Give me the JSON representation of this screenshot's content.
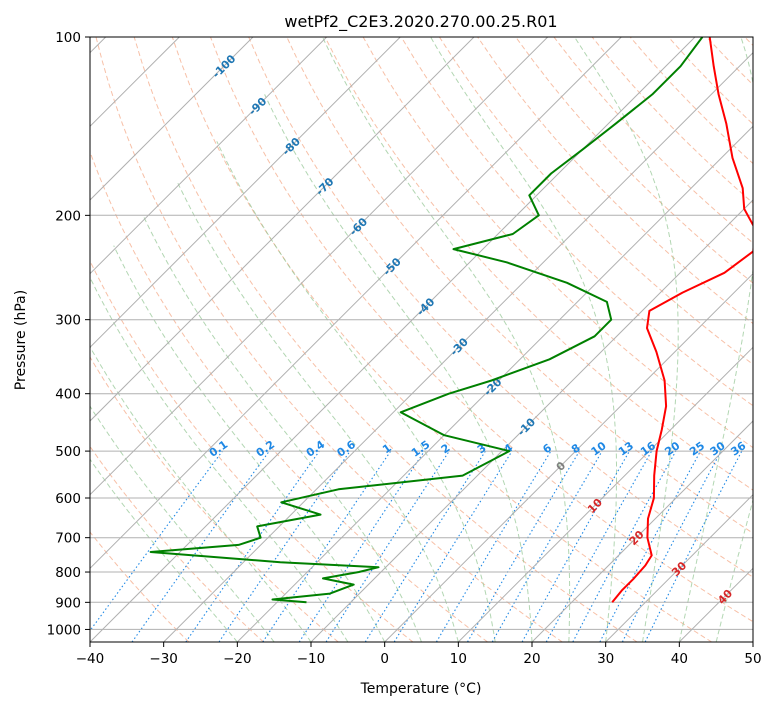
{
  "chart_data": {
    "type": "line",
    "title": "wetPf2_C2E3.2020.270.00.25.R01",
    "xlabel": "Temperature (°C)",
    "ylabel": "Pressure (hPa)",
    "xlim": [
      -40,
      50
    ],
    "ylim": [
      1050,
      100
    ],
    "y_scale": "log",
    "x_ticks": [
      -40,
      -30,
      -20,
      -10,
      0,
      10,
      20,
      30,
      40,
      50
    ],
    "y_ticks": [
      100,
      200,
      300,
      400,
      500,
      600,
      700,
      800,
      900,
      1000
    ],
    "grid": true,
    "colors": {
      "temperature": "#ff0000",
      "dewpoint": "#008000",
      "isotherm": "#b0b0b0",
      "dry_adiabat": "#f4a582",
      "moist_adiabat": "#92c592",
      "mixing_ratio": "#1e88e5",
      "iso_label": "#1f77b4",
      "red_label": "#d62728",
      "gray_label": "#808080"
    },
    "series": [
      {
        "name": "",
        "color": "#ff0000",
        "points": [
          [
            900,
            25.5
          ],
          [
            860,
            25.2
          ],
          [
            820,
            25.2
          ],
          [
            780,
            25.0
          ],
          [
            750,
            24.5
          ],
          [
            700,
            21.5
          ],
          [
            650,
            19.0
          ],
          [
            600,
            17.0
          ],
          [
            550,
            14.0
          ],
          [
            500,
            11.0
          ],
          [
            460,
            8.8
          ],
          [
            420,
            6.2
          ],
          [
            380,
            2.5
          ],
          [
            340,
            -2.5
          ],
          [
            310,
            -7.0
          ],
          [
            290,
            -9.0
          ],
          [
            270,
            -7.0
          ],
          [
            250,
            -4.0
          ],
          [
            230,
            -3.0
          ],
          [
            210,
            -6.0
          ],
          [
            195,
            -10.0
          ],
          [
            180,
            -13.0
          ],
          [
            160,
            -18.5
          ],
          [
            140,
            -24.0
          ],
          [
            125,
            -29.0
          ],
          [
            112,
            -33.5
          ],
          [
            100,
            -38.0
          ]
        ]
      },
      {
        "name": "",
        "color": "#008000",
        "points": [
          [
            900,
            -16.0
          ],
          [
            890,
            -21.0
          ],
          [
            870,
            -14.0
          ],
          [
            840,
            -12.0
          ],
          [
            820,
            -17.0
          ],
          [
            800,
            -13.0
          ],
          [
            785,
            -11.0
          ],
          [
            770,
            -25.0
          ],
          [
            740,
            -44.0
          ],
          [
            720,
            -33.0
          ],
          [
            700,
            -31.0
          ],
          [
            670,
            -33.0
          ],
          [
            640,
            -26.0
          ],
          [
            610,
            -33.0
          ],
          [
            580,
            -27.0
          ],
          [
            550,
            -12.0
          ],
          [
            500,
            -9.0
          ],
          [
            470,
            -20.0
          ],
          [
            430,
            -29.0
          ],
          [
            400,
            -25.0
          ],
          [
            380,
            -21.0
          ],
          [
            350,
            -16.0
          ],
          [
            320,
            -13.0
          ],
          [
            300,
            -13.0
          ],
          [
            280,
            -16.0
          ],
          [
            260,
            -24.0
          ],
          [
            240,
            -35.0
          ],
          [
            228,
            -44.0
          ],
          [
            215,
            -38.0
          ],
          [
            200,
            -37.0
          ],
          [
            185,
            -41.0
          ],
          [
            170,
            -41.0
          ],
          [
            155,
            -40.0
          ],
          [
            140,
            -39.0
          ],
          [
            125,
            -38.0
          ],
          [
            112,
            -38.0
          ],
          [
            100,
            -39.0
          ]
        ]
      }
    ],
    "isotherm_labels": [
      "-100",
      "-90",
      "-80",
      "-70",
      "-60",
      "-50",
      "-40",
      "-30",
      "-20",
      "-10",
      "0",
      "10",
      "20",
      "30",
      "40"
    ],
    "mixing_ratio_labels": [
      "0.1",
      "0.2",
      "0.4",
      "0.6",
      "1",
      "1.5",
      "2",
      "3",
      "4",
      "6",
      "8",
      "10",
      "13",
      "16",
      "20",
      "25",
      "30",
      "36"
    ]
  }
}
